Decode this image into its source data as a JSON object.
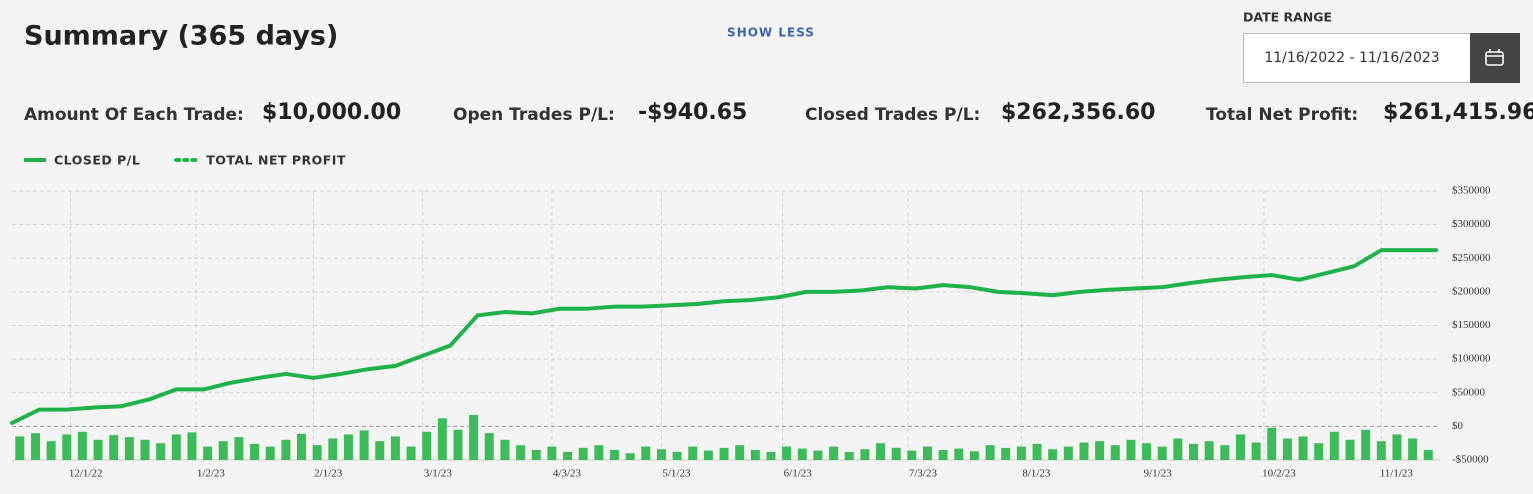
{
  "header": {
    "title": "Summary (365 days)",
    "toggle": "SHOW LESS"
  },
  "date_range": {
    "label": "DATE RANGE",
    "value": "11/16/2022 - 11/16/2023"
  },
  "stats": [
    {
      "label": "Amount Of Each Trade:",
      "value": "$10,000.00"
    },
    {
      "label": "Open Trades P/L:",
      "value": "-$940.65"
    },
    {
      "label": "Closed Trades P/L:",
      "value": "$262,356.60"
    },
    {
      "label": "Total Net Profit:",
      "value": "$261,415.96"
    }
  ],
  "chart_data": {
    "type": "line",
    "series": [
      {
        "name": "CLOSED P/L",
        "color": "#1fb14c",
        "style": "solid",
        "x": [
          0,
          7,
          14,
          21,
          28,
          35,
          42,
          49,
          56,
          63,
          70,
          77,
          84,
          91,
          98,
          105,
          112,
          119,
          126,
          133,
          140,
          147,
          154,
          161,
          168,
          175,
          182,
          189,
          196,
          203,
          210,
          217,
          224,
          231,
          238,
          245,
          252,
          259,
          266,
          273,
          280,
          287,
          294,
          301,
          308,
          315,
          322,
          329,
          336,
          343,
          350,
          357,
          364
        ],
        "values": [
          5000,
          25000,
          25000,
          28000,
          30000,
          40000,
          55000,
          55000,
          65000,
          72000,
          78000,
          72000,
          78000,
          85000,
          90000,
          105000,
          120000,
          165000,
          170000,
          168000,
          175000,
          175000,
          178000,
          178000,
          180000,
          182000,
          186000,
          188000,
          192000,
          200000,
          200000,
          202000,
          207000,
          205000,
          210000,
          207000,
          200000,
          198000,
          195000,
          200000,
          203000,
          205000,
          207000,
          213000,
          218000,
          222000,
          225000,
          218000,
          228000,
          238000,
          262000,
          262000,
          262000
        ]
      },
      {
        "name": "TOTAL NET PROFIT",
        "color": "#1fb14c",
        "style": "dotted"
      }
    ],
    "bars": {
      "color": "#3dbb5a",
      "x": [
        2,
        6,
        10,
        14,
        18,
        22,
        26,
        30,
        34,
        38,
        42,
        46,
        50,
        54,
        58,
        62,
        66,
        70,
        74,
        78,
        82,
        86,
        90,
        94,
        98,
        102,
        106,
        110,
        114,
        118,
        122,
        126,
        130,
        134,
        138,
        142,
        146,
        150,
        154,
        158,
        162,
        166,
        170,
        174,
        178,
        182,
        186,
        190,
        194,
        198,
        202,
        206,
        210,
        214,
        218,
        222,
        226,
        230,
        234,
        238,
        242,
        246,
        250,
        254,
        258,
        262,
        266,
        270,
        274,
        278,
        282,
        286,
        290,
        294,
        298,
        302,
        306,
        310,
        314,
        318,
        322,
        326,
        330,
        334,
        338,
        342,
        346,
        350,
        354,
        358,
        362
      ],
      "values": [
        -15000,
        -10000,
        -22000,
        -12000,
        -8000,
        -20000,
        -13000,
        -16000,
        -20000,
        -25000,
        -12000,
        -9000,
        -30000,
        -22000,
        -16000,
        -26000,
        -30000,
        -20000,
        -11000,
        -28000,
        -18000,
        -12000,
        -6000,
        -22000,
        -15000,
        -30000,
        -8000,
        12000,
        -5000,
        17000,
        -10000,
        -20000,
        -28000,
        -35000,
        -30000,
        -38000,
        -32000,
        -28000,
        -35000,
        -40000,
        -30000,
        -34000,
        -38000,
        -30000,
        -36000,
        -32000,
        -28000,
        -35000,
        -38000,
        -30000,
        -33000,
        -36000,
        -30000,
        -38000,
        -34000,
        -25000,
        -32000,
        -36000,
        -30000,
        -35000,
        -33000,
        -37000,
        -28000,
        -32000,
        -30000,
        -26000,
        -34000,
        -30000,
        -24000,
        -22000,
        -28000,
        -20000,
        -25000,
        -30000,
        -18000,
        -26000,
        -22000,
        -28000,
        -12000,
        -24000,
        -2000,
        -18000,
        -15000,
        -25000,
        -8000,
        -20000,
        -5000,
        -22000,
        -12000,
        -18000,
        -35000
      ]
    },
    "xlim": [
      0,
      365
    ],
    "xticks": [
      {
        "value": 15,
        "label": "12/1/22"
      },
      {
        "value": 47,
        "label": "1/2/23"
      },
      {
        "value": 77,
        "label": "2/1/23"
      },
      {
        "value": 105,
        "label": "3/1/23"
      },
      {
        "value": 138,
        "label": "4/3/23"
      },
      {
        "value": 166,
        "label": "5/1/23"
      },
      {
        "value": 197,
        "label": "6/1/23"
      },
      {
        "value": 229,
        "label": "7/3/23"
      },
      {
        "value": 258,
        "label": "8/1/23"
      },
      {
        "value": 289,
        "label": "9/1/23"
      },
      {
        "value": 320,
        "label": "10/2/23"
      },
      {
        "value": 350,
        "label": "11/1/23"
      }
    ],
    "ylim": [
      -50000,
      350000
    ],
    "yticks": [
      {
        "value": -50000,
        "label": "-$50000"
      },
      {
        "value": 0,
        "label": "$0"
      },
      {
        "value": 50000,
        "label": "$50000"
      },
      {
        "value": 100000,
        "label": "$100000"
      },
      {
        "value": 150000,
        "label": "$150000"
      },
      {
        "value": 200000,
        "label": "$200000"
      },
      {
        "value": 250000,
        "label": "$250000"
      },
      {
        "value": 300000,
        "label": "$300000"
      },
      {
        "value": 350000,
        "label": "$350000"
      }
    ],
    "grid": true
  }
}
